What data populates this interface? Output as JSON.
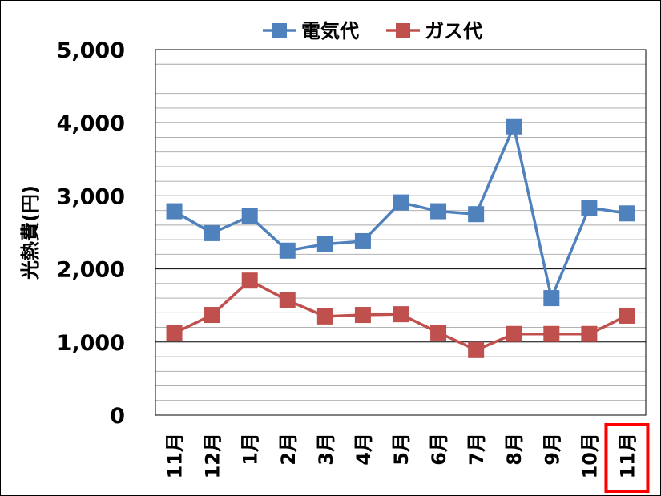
{
  "chart_data": {
    "type": "line",
    "title": "",
    "xlabel": "",
    "ylabel": "光熱費(円)",
    "ylim": [
      0,
      5000
    ],
    "yticks": [
      "0",
      "1,000",
      "2,000",
      "3,000",
      "4,000",
      "5,000"
    ],
    "categories": [
      "11月",
      "12月",
      "1月",
      "2月",
      "3月",
      "4月",
      "5月",
      "6月",
      "7月",
      "8月",
      "9月",
      "10月",
      "11月"
    ],
    "highlighted_category_index": 12,
    "highlight_color": "#ff0000",
    "grid": true,
    "legend_position": "top",
    "series": [
      {
        "name": "電気代",
        "color": "#4f81bd",
        "marker": "square",
        "values": [
          2790,
          2490,
          2720,
          2250,
          2340,
          2380,
          2910,
          2790,
          2750,
          3950,
          1600,
          2840,
          2760
        ]
      },
      {
        "name": "ガス代",
        "color": "#c0504d",
        "marker": "square",
        "values": [
          1120,
          1370,
          1840,
          1570,
          1350,
          1370,
          1380,
          1130,
          890,
          1110,
          1110,
          1110,
          1360
        ]
      }
    ]
  }
}
